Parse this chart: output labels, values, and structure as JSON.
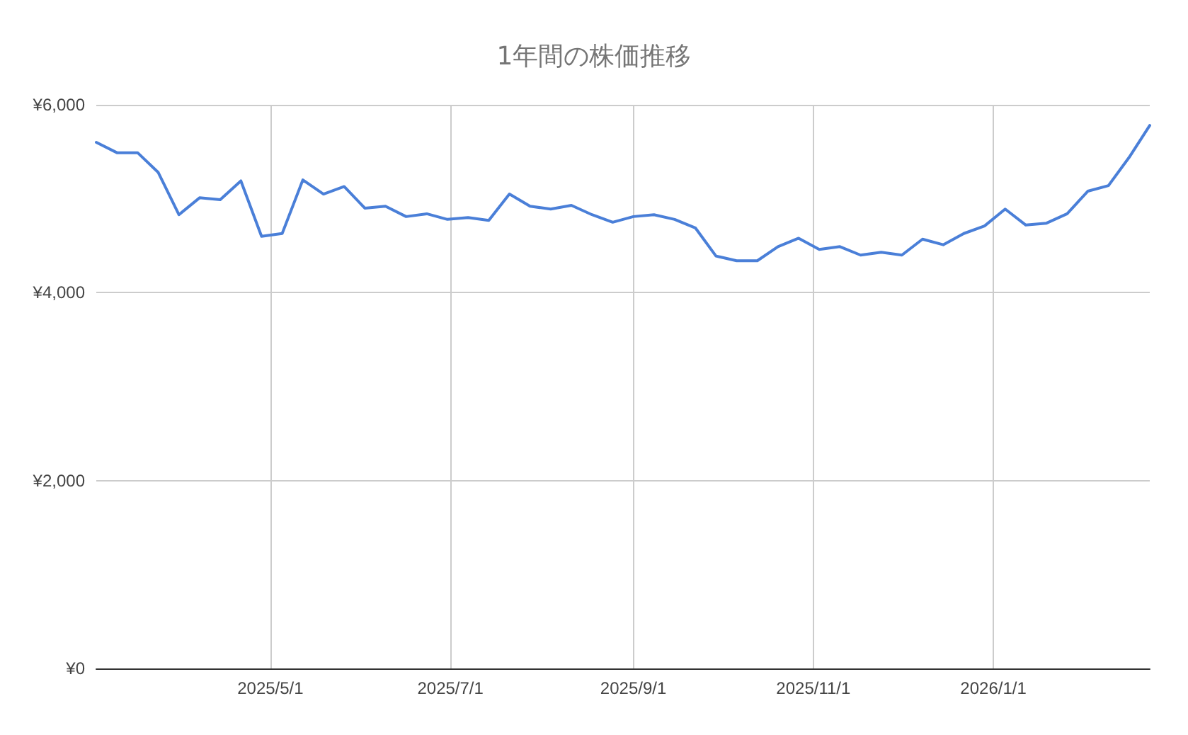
{
  "chart_data": {
    "type": "line",
    "title": "1年間の株価推移",
    "x": [
      "2025-03-03",
      "2025-03-10",
      "2025-03-17",
      "2025-03-24",
      "2025-03-31",
      "2025-04-07",
      "2025-04-14",
      "2025-04-21",
      "2025-04-28",
      "2025-05-05",
      "2025-05-12",
      "2025-05-19",
      "2025-05-26",
      "2025-06-02",
      "2025-06-09",
      "2025-06-16",
      "2025-06-23",
      "2025-06-30",
      "2025-07-07",
      "2025-07-14",
      "2025-07-21",
      "2025-07-28",
      "2025-08-04",
      "2025-08-11",
      "2025-08-18",
      "2025-08-25",
      "2025-09-01",
      "2025-09-08",
      "2025-09-15",
      "2025-09-22",
      "2025-09-29",
      "2025-10-06",
      "2025-10-13",
      "2025-10-20",
      "2025-10-27",
      "2025-11-03",
      "2025-11-10",
      "2025-11-17",
      "2025-11-24",
      "2025-12-01",
      "2025-12-08",
      "2025-12-15",
      "2025-12-22",
      "2025-12-29",
      "2026-01-05",
      "2026-01-12",
      "2026-01-19",
      "2026-01-26",
      "2026-02-02",
      "2026-02-09",
      "2026-02-16",
      "2026-02-23"
    ],
    "series": [
      {
        "color": "#4a7fd8",
        "values": [
          5600,
          5490,
          5490,
          5280,
          4830,
          5010,
          4990,
          5190,
          4600,
          4630,
          5200,
          5050,
          5130,
          4900,
          4920,
          4810,
          4840,
          4780,
          4800,
          4770,
          5050,
          4920,
          4890,
          4930,
          4830,
          4750,
          4810,
          4830,
          4780,
          4690,
          4390,
          4340,
          4340,
          4490,
          4580,
          4460,
          4490,
          4400,
          4430,
          4400,
          4570,
          4510,
          4630,
          4710,
          4890,
          4720,
          4740,
          4840,
          5080,
          5140,
          5440,
          5780
        ]
      }
    ],
    "xlim": [
      "2025-03-03",
      "2026-02-23"
    ],
    "xticks": [
      {
        "value": "2025-05-01",
        "label": "2025/5/1"
      },
      {
        "value": "2025-07-01",
        "label": "2025/7/1"
      },
      {
        "value": "2025-09-01",
        "label": "2025/9/1"
      },
      {
        "value": "2025-11-01",
        "label": "2025/11/1"
      },
      {
        "value": "2026-01-01",
        "label": "2026/1/1"
      }
    ],
    "ylim": [
      0,
      6000
    ],
    "yticks": [
      {
        "value": 0,
        "label": "¥0"
      },
      {
        "value": 2000,
        "label": "¥2,000"
      },
      {
        "value": 4000,
        "label": "¥4,000"
      },
      {
        "value": 6000,
        "label": "¥6,000"
      }
    ],
    "grid": true,
    "marker": "none",
    "line_style": "solid"
  }
}
